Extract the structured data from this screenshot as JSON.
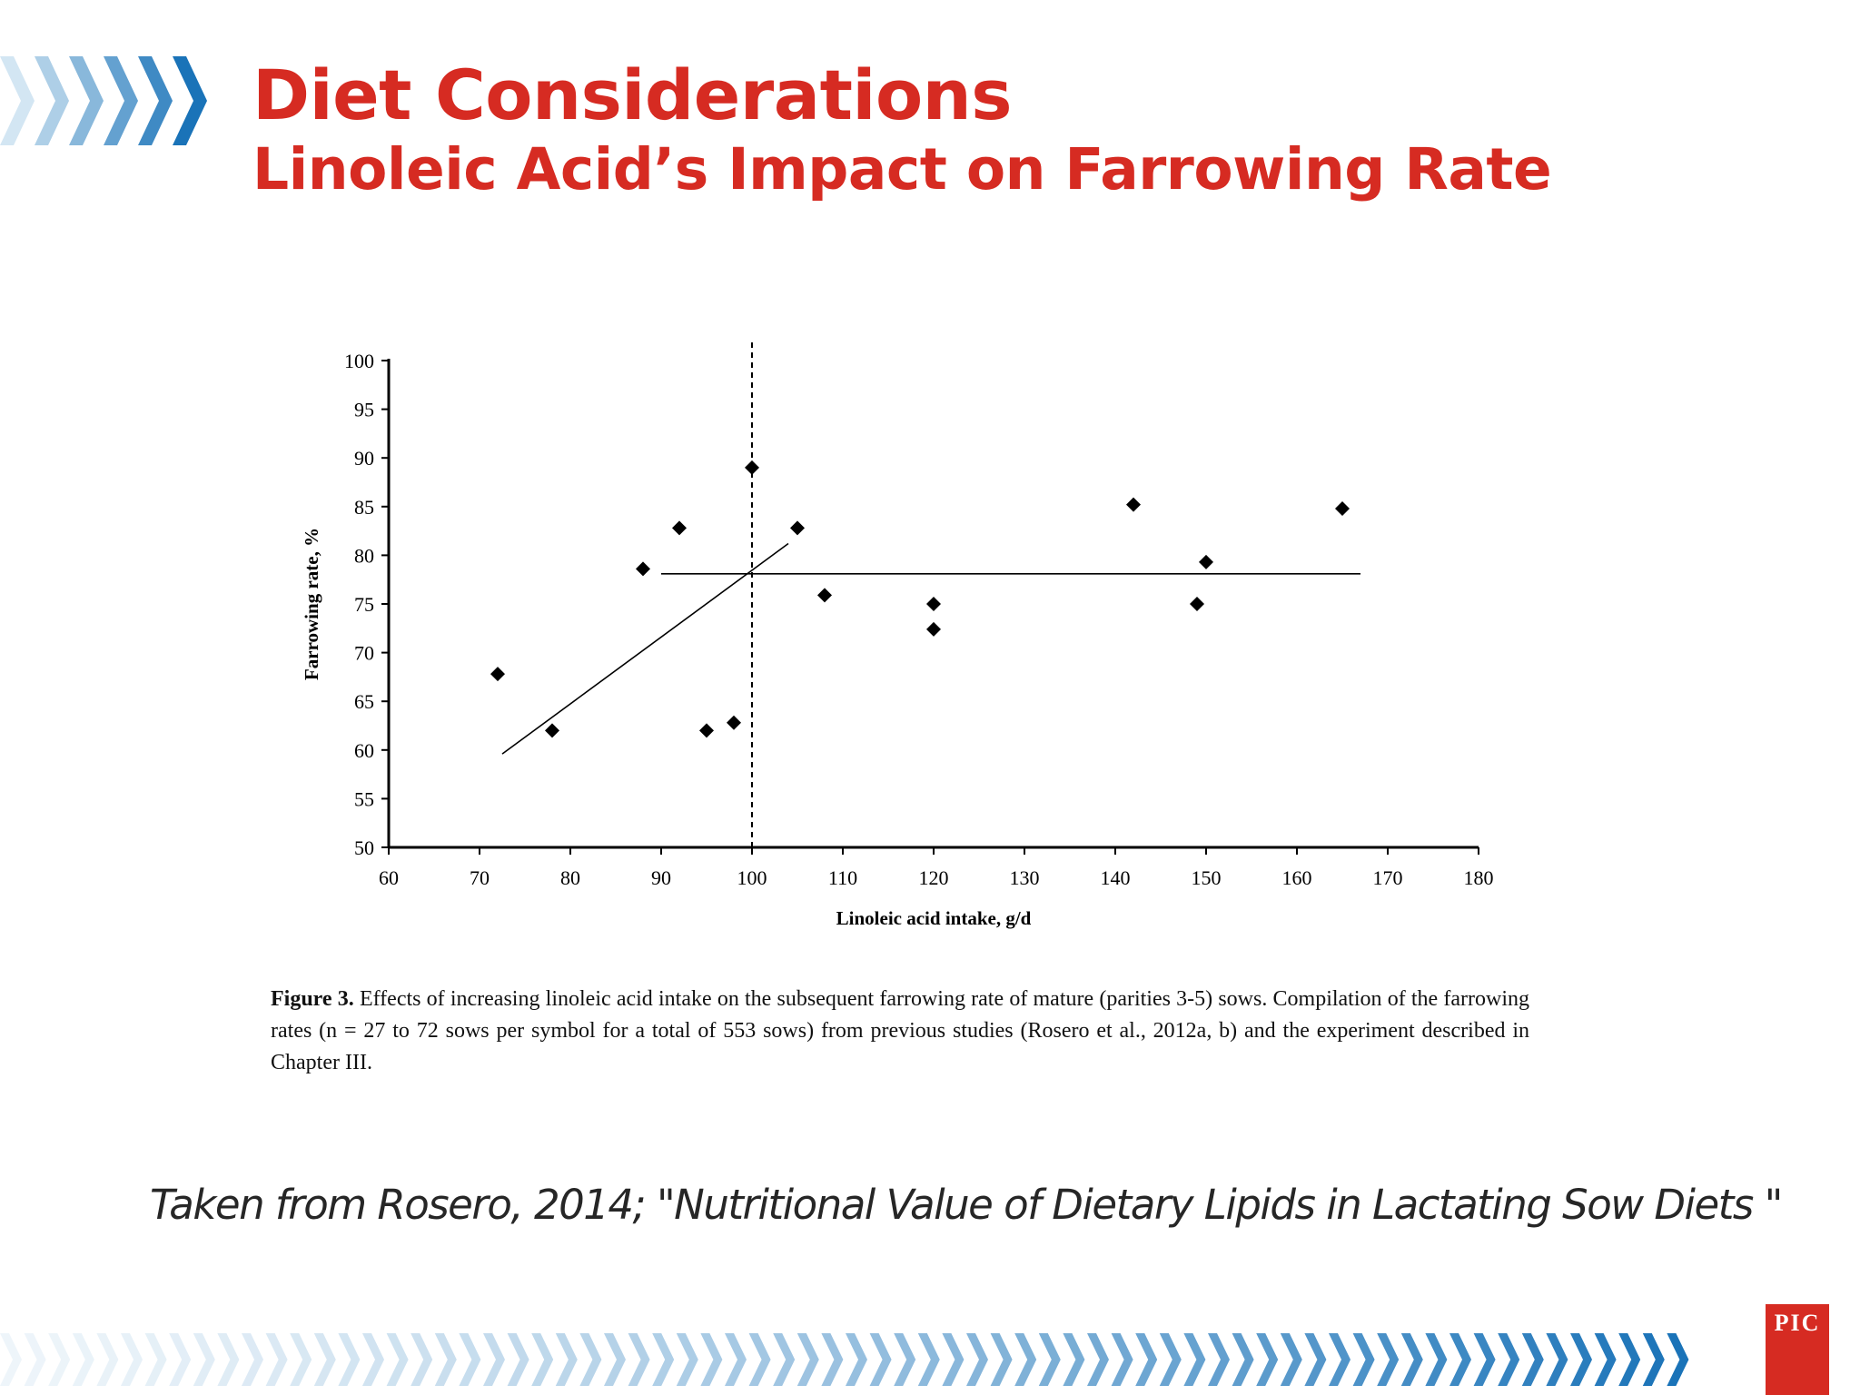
{
  "header": {
    "title": "Diet Considerations",
    "subtitle": "Linoleic Acid’s Impact on Farrowing Rate"
  },
  "chart_data": {
    "type": "scatter",
    "xlabel": "Linoleic acid intake, g/d",
    "ylabel": "Farrowing rate, %",
    "xlim": [
      60,
      180
    ],
    "ylim": [
      50,
      100
    ],
    "xticks": [
      60,
      70,
      80,
      90,
      100,
      110,
      120,
      130,
      140,
      150,
      160,
      170,
      180
    ],
    "yticks": [
      50,
      55,
      60,
      65,
      70,
      75,
      80,
      85,
      90,
      95,
      100
    ],
    "grid": false,
    "marker": "diamond",
    "points": [
      {
        "x": 72,
        "y": 67.8
      },
      {
        "x": 78,
        "y": 62
      },
      {
        "x": 88,
        "y": 78.6
      },
      {
        "x": 92,
        "y": 82.8
      },
      {
        "x": 95,
        "y": 62
      },
      {
        "x": 98,
        "y": 62.8
      },
      {
        "x": 100,
        "y": 89
      },
      {
        "x": 105,
        "y": 82.8
      },
      {
        "x": 108,
        "y": 75.9
      },
      {
        "x": 120,
        "y": 75
      },
      {
        "x": 120,
        "y": 72.4
      },
      {
        "x": 142,
        "y": 85.2
      },
      {
        "x": 149,
        "y": 75
      },
      {
        "x": 150,
        "y": 79.3
      },
      {
        "x": 165,
        "y": 84.8
      }
    ],
    "fit_lines": [
      {
        "x": [
          72.5,
          104
        ],
        "y": [
          59.6,
          81.2
        ]
      },
      {
        "x": [
          90,
          167
        ],
        "y": [
          78.1,
          78.1
        ]
      }
    ],
    "reference_line": {
      "x": 100,
      "style": "dashed"
    }
  },
  "caption": {
    "label": "Figure 3.",
    "text": "Effects of increasing linoleic acid intake on the subsequent farrowing rate of mature (parities 3-5) sows. Compilation of the farrowing rates (n = 27 to 72 sows per symbol for a total of 553 sows) from previous studies (Rosero et al., 2012a, b) and the experiment described in Chapter III."
  },
  "source": "Taken from Rosero, 2014; \"Nutritional Value of Dietary Lipids in Lactating Sow Diets \"",
  "logo": {
    "text": "PIC"
  },
  "colors": {
    "title": "#d62b22",
    "chevron_dark": "#1a73b8",
    "chevron_light": "#d3e6f3",
    "logo_bg": "#d62b22"
  }
}
